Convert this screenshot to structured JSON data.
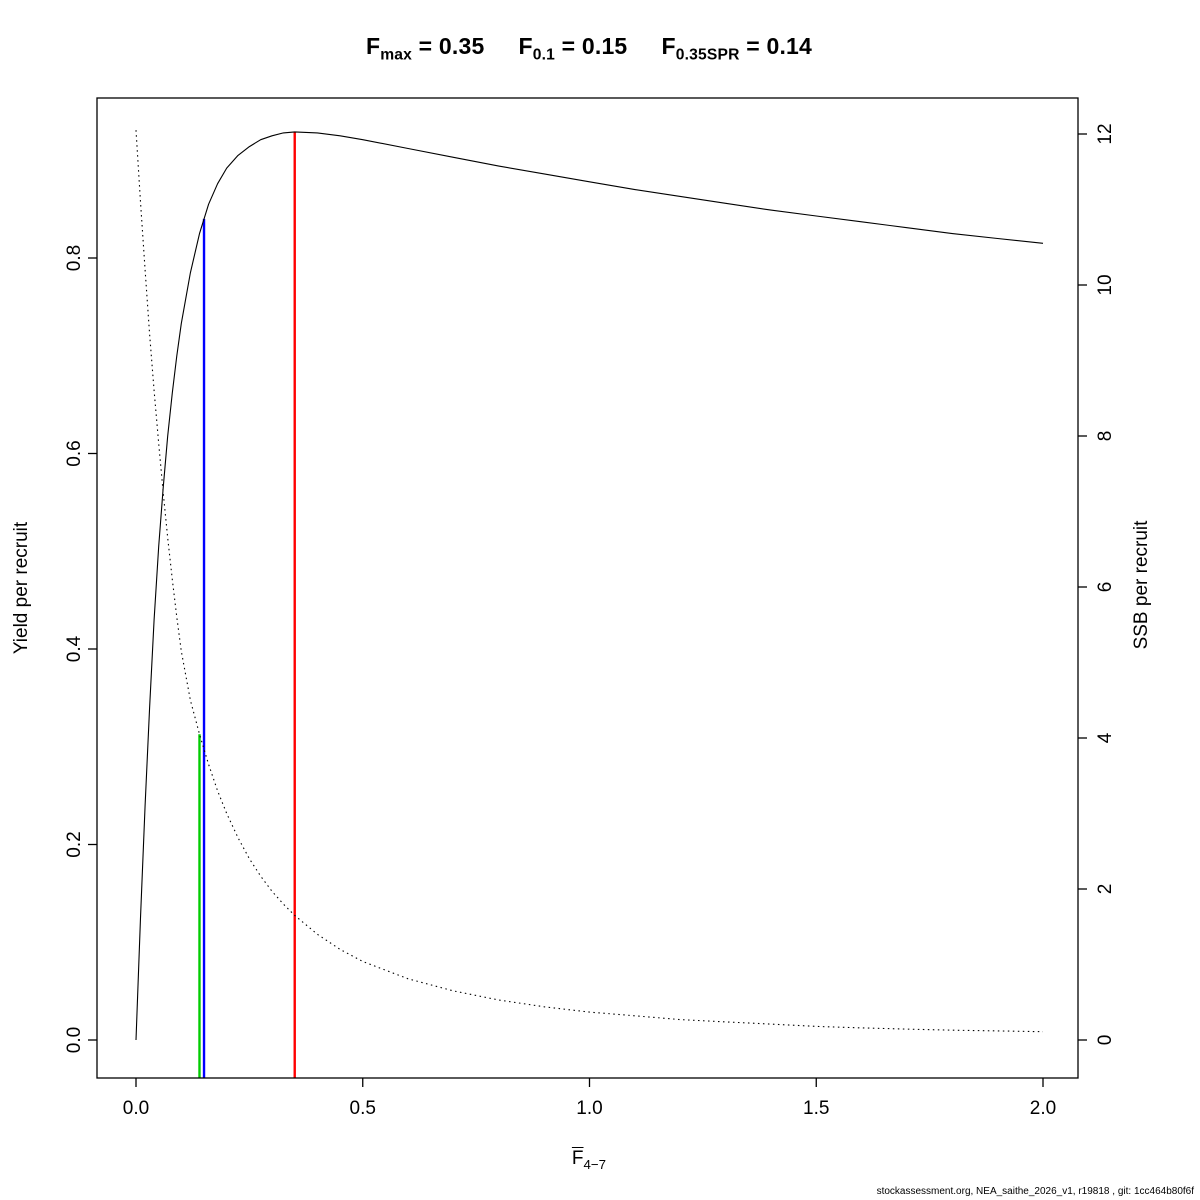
{
  "title": {
    "text": "Fmax = 0.35    F0.1 = 0.15    F0.35SPR = 0.14",
    "items": [
      {
        "name": "F_max",
        "base": "F",
        "sub": "max",
        "value": "0.35"
      },
      {
        "name": "F_0.1",
        "base": "F",
        "sub": "0.1",
        "value": "0.15"
      },
      {
        "name": "F_0.35SPR",
        "base": "F",
        "sub": "0.35SPR",
        "value": "0.14"
      }
    ]
  },
  "footer": {
    "text": "stockassessment.org, NEA_saithe_2026_v1, r19818 , git: 1cc464b80f6f"
  },
  "chart_data": {
    "type": "line",
    "title": "Fmax = 0.35  F0.1 = 0.15  F0.35SPR = 0.14",
    "x_axis": {
      "label_base": "F",
      "label_sub": "4−7",
      "range": [
        0,
        2.05
      ],
      "ticks": [
        0,
        0.5,
        1.0,
        1.5,
        2.0
      ],
      "tick_labels": [
        "0.0",
        "0.5",
        "1.0",
        "1.5",
        "2.0"
      ]
    },
    "y_left": {
      "label": "Yield per recruit",
      "range": [
        0,
        0.93
      ],
      "ticks": [
        0,
        0.2,
        0.4,
        0.6,
        0.8
      ],
      "tick_labels": [
        "0.0",
        "0.2",
        "0.4",
        "0.6",
        "0.8"
      ]
    },
    "y_right": {
      "label": "SSB per recruit",
      "range": [
        0,
        12.1
      ],
      "ticks": [
        0,
        2,
        4,
        6,
        8,
        10,
        12
      ],
      "tick_labels": [
        "0",
        "2",
        "4",
        "6",
        "8",
        "10",
        "12"
      ]
    },
    "grid": false,
    "legend": "none",
    "series": [
      {
        "name": "yield-per-recruit",
        "axis": "left",
        "style": "solid",
        "color": "#000000",
        "x": [
          0,
          0.01,
          0.02,
          0.03,
          0.04,
          0.05,
          0.06,
          0.07,
          0.08,
          0.09,
          0.1,
          0.12,
          0.14,
          0.16,
          0.18,
          0.2,
          0.225,
          0.25,
          0.275,
          0.3,
          0.325,
          0.35,
          0.4,
          0.45,
          0.5,
          0.6,
          0.7,
          0.8,
          0.9,
          1.0,
          1.1,
          1.2,
          1.3,
          1.4,
          1.5,
          1.6,
          1.7,
          1.8,
          1.9,
          2.0
        ],
        "y": [
          0,
          0.125,
          0.24,
          0.34,
          0.43,
          0.505,
          0.565,
          0.618,
          0.662,
          0.7,
          0.733,
          0.785,
          0.825,
          0.855,
          0.876,
          0.892,
          0.905,
          0.914,
          0.921,
          0.925,
          0.928,
          0.929,
          0.928,
          0.925,
          0.921,
          0.912,
          0.903,
          0.894,
          0.886,
          0.878,
          0.87,
          0.863,
          0.856,
          0.849,
          0.843,
          0.837,
          0.831,
          0.825,
          0.82,
          0.815
        ]
      },
      {
        "name": "ssb-per-recruit",
        "axis": "right",
        "style": "dotted",
        "color": "#000000",
        "x": [
          0,
          0.01,
          0.02,
          0.03,
          0.04,
          0.05,
          0.06,
          0.07,
          0.08,
          0.09,
          0.1,
          0.12,
          0.14,
          0.16,
          0.18,
          0.2,
          0.225,
          0.25,
          0.275,
          0.3,
          0.325,
          0.35,
          0.4,
          0.45,
          0.5,
          0.6,
          0.7,
          0.8,
          0.9,
          1.0,
          1.1,
          1.2,
          1.3,
          1.4,
          1.5,
          1.6,
          1.7,
          1.8,
          1.9,
          2.0
        ],
        "y": [
          12.05,
          11.1,
          10.2,
          9.35,
          8.6,
          7.9,
          7.25,
          6.65,
          6.1,
          5.6,
          5.15,
          4.5,
          4.05,
          3.65,
          3.3,
          3.0,
          2.68,
          2.4,
          2.17,
          1.97,
          1.8,
          1.65,
          1.4,
          1.2,
          1.04,
          0.81,
          0.65,
          0.53,
          0.44,
          0.37,
          0.32,
          0.27,
          0.24,
          0.21,
          0.18,
          0.16,
          0.145,
          0.13,
          0.12,
          0.11
        ]
      }
    ],
    "reference_lines": [
      {
        "name": "F-max",
        "x": 0.35,
        "top_value": 0.929,
        "top_axis": "left",
        "color": "#ff0000"
      },
      {
        "name": "F-0.1",
        "x": 0.15,
        "top_value": 0.84,
        "top_axis": "left",
        "color": "#0000ff"
      },
      {
        "name": "F-0.35SPR",
        "x": 0.14,
        "top_value": 4.05,
        "top_axis": "right",
        "color": "#00cc00"
      }
    ]
  }
}
